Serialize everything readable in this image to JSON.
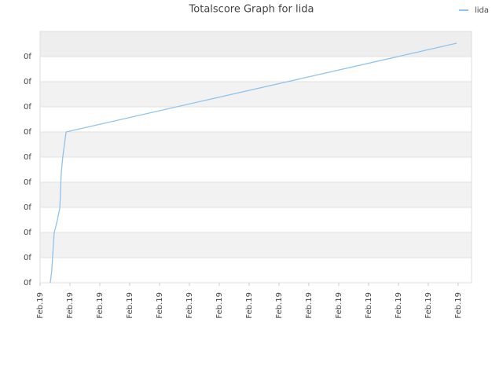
{
  "chart_data": {
    "type": "line",
    "title": "Totalscore Graph for lida",
    "x": [
      0.34,
      0.39,
      0.47,
      0.58,
      0.66,
      0.71,
      0.76,
      0.87,
      13.95
    ],
    "series": [
      {
        "name": "lida",
        "color": "#8ec3ef",
        "values": [
          0,
          0.47,
          1.97,
          2.5,
          2.97,
          4.38,
          5,
          6,
          9.53
        ]
      }
    ],
    "xlim": [
      0,
      14.45
    ],
    "xticks": [
      {
        "value": 0,
        "label": "Feb.19"
      },
      {
        "value": 1,
        "label": "Feb.19"
      },
      {
        "value": 2,
        "label": "Feb.19"
      },
      {
        "value": 3,
        "label": "Feb.19"
      },
      {
        "value": 4,
        "label": "Feb.19"
      },
      {
        "value": 5,
        "label": "Feb.19"
      },
      {
        "value": 6,
        "label": "Feb.19"
      },
      {
        "value": 7,
        "label": "Feb.19"
      },
      {
        "value": 8,
        "label": "Feb.19"
      },
      {
        "value": 9,
        "label": "Feb.19"
      },
      {
        "value": 10,
        "label": "Feb.19"
      },
      {
        "value": 11,
        "label": "Feb.19"
      },
      {
        "value": 12,
        "label": "Feb.19"
      },
      {
        "value": 13,
        "label": "Feb.19"
      },
      {
        "value": 14,
        "label": "Feb.19"
      }
    ],
    "ylim": [
      0,
      10
    ],
    "yticks": [
      {
        "value": 0,
        "label": "0f"
      },
      {
        "value": 1,
        "label": "0f"
      },
      {
        "value": 2,
        "label": "0f"
      },
      {
        "value": 3,
        "label": "0f"
      },
      {
        "value": 4,
        "label": "0f"
      },
      {
        "value": 5,
        "label": "0f"
      },
      {
        "value": 6,
        "label": "0f"
      },
      {
        "value": 7,
        "label": "0f"
      },
      {
        "value": 8,
        "label": "0f"
      },
      {
        "value": 9,
        "label": "0f"
      }
    ],
    "grid": true,
    "legend": "top-right"
  }
}
